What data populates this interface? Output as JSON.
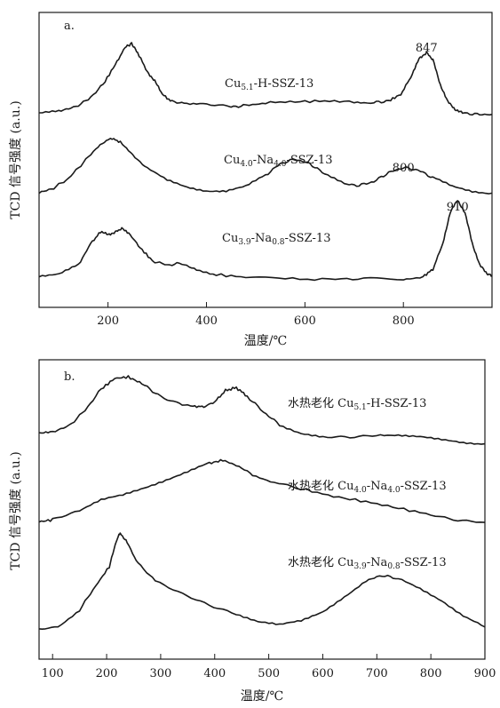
{
  "chart_data": [
    {
      "type": "line",
      "panel_label": "a.",
      "xlabel": "温度/℃",
      "ylabel": "TCD 信号强度 (a.u.)",
      "xlim": [
        60,
        980
      ],
      "x_ticks": [
        200,
        400,
        600,
        800
      ],
      "grid": false,
      "peak_labels": [
        {
          "text": "847",
          "x": 847
        },
        {
          "text": "800",
          "x": 800
        },
        {
          "text": "910",
          "x": 910
        }
      ],
      "series": [
        {
          "name": "Cu5.1-H-SSZ-13",
          "name_parts": [
            [
              "Cu",
              ""
            ],
            [
              "5.1",
              "sub"
            ],
            [
              "-H-SSZ-13",
              ""
            ]
          ],
          "points": [
            [
              60,
              0.06
            ],
            [
              100,
              0.1
            ],
            [
              130,
              0.14
            ],
            [
              160,
              0.25
            ],
            [
              190,
              0.45
            ],
            [
              215,
              0.72
            ],
            [
              235,
              0.95
            ],
            [
              248,
              1.0
            ],
            [
              260,
              0.88
            ],
            [
              280,
              0.62
            ],
            [
              295,
              0.5
            ],
            [
              310,
              0.32
            ],
            [
              330,
              0.22
            ],
            [
              360,
              0.2
            ],
            [
              400,
              0.19
            ],
            [
              450,
              0.15
            ],
            [
              480,
              0.17
            ],
            [
              520,
              0.21
            ],
            [
              580,
              0.22
            ],
            [
              640,
              0.23
            ],
            [
              700,
              0.22
            ],
            [
              740,
              0.21
            ],
            [
              770,
              0.23
            ],
            [
              795,
              0.32
            ],
            [
              815,
              0.55
            ],
            [
              832,
              0.8
            ],
            [
              847,
              0.88
            ],
            [
              860,
              0.78
            ],
            [
              875,
              0.45
            ],
            [
              890,
              0.22
            ],
            [
              905,
              0.12
            ],
            [
              920,
              0.07
            ],
            [
              950,
              0.05
            ],
            [
              980,
              0.05
            ]
          ]
        },
        {
          "name": "Cu4.0-Na4.0-SSZ-13",
          "name_parts": [
            [
              "Cu",
              ""
            ],
            [
              "4.0",
              "sub"
            ],
            [
              "-Na",
              ""
            ],
            [
              "4.0",
              "sub"
            ],
            [
              "-SSZ-13",
              ""
            ]
          ],
          "points": [
            [
              60,
              0.12
            ],
            [
              90,
              0.2
            ],
            [
              120,
              0.35
            ],
            [
              150,
              0.6
            ],
            [
              180,
              0.85
            ],
            [
              205,
              0.98
            ],
            [
              225,
              0.92
            ],
            [
              250,
              0.72
            ],
            [
              280,
              0.5
            ],
            [
              320,
              0.32
            ],
            [
              360,
              0.22
            ],
            [
              400,
              0.16
            ],
            [
              440,
              0.15
            ],
            [
              480,
              0.22
            ],
            [
              520,
              0.4
            ],
            [
              550,
              0.58
            ],
            [
              580,
              0.65
            ],
            [
              610,
              0.58
            ],
            [
              640,
              0.42
            ],
            [
              680,
              0.26
            ],
            [
              710,
              0.24
            ],
            [
              740,
              0.3
            ],
            [
              770,
              0.44
            ],
            [
              800,
              0.52
            ],
            [
              830,
              0.48
            ],
            [
              860,
              0.36
            ],
            [
              900,
              0.22
            ],
            [
              940,
              0.15
            ],
            [
              980,
              0.12
            ]
          ]
        },
        {
          "name": "Cu3.9-Na0.8-SSZ-13",
          "name_parts": [
            [
              "Cu",
              ""
            ],
            [
              "3.9",
              "sub"
            ],
            [
              "-Na",
              ""
            ],
            [
              "0.8",
              "sub"
            ],
            [
              "-SSZ-13",
              ""
            ]
          ],
          "points": [
            [
              60,
              0.08
            ],
            [
              100,
              0.1
            ],
            [
              140,
              0.2
            ],
            [
              165,
              0.45
            ],
            [
              185,
              0.58
            ],
            [
              200,
              0.55
            ],
            [
              215,
              0.58
            ],
            [
              228,
              0.62
            ],
            [
              245,
              0.55
            ],
            [
              265,
              0.4
            ],
            [
              290,
              0.25
            ],
            [
              320,
              0.2
            ],
            [
              350,
              0.22
            ],
            [
              380,
              0.14
            ],
            [
              420,
              0.09
            ],
            [
              480,
              0.06
            ],
            [
              560,
              0.04
            ],
            [
              650,
              0.04
            ],
            [
              720,
              0.04
            ],
            [
              800,
              0.04
            ],
            [
              840,
              0.07
            ],
            [
              860,
              0.15
            ],
            [
              880,
              0.45
            ],
            [
              895,
              0.8
            ],
            [
              910,
              0.95
            ],
            [
              925,
              0.8
            ],
            [
              940,
              0.45
            ],
            [
              955,
              0.2
            ],
            [
              970,
              0.1
            ],
            [
              980,
              0.08
            ]
          ]
        }
      ]
    },
    {
      "type": "line",
      "panel_label": "b.",
      "xlabel": "温度/℃",
      "ylabel": "TCD 信号强度 (a.u.)",
      "xlim": [
        75,
        900
      ],
      "x_ticks": [
        100,
        200,
        300,
        400,
        500,
        600,
        700,
        800,
        900
      ],
      "grid": false,
      "series": [
        {
          "name": "水热老化 Cu5.1-H-SSZ-13",
          "name_parts": [
            [
              "水热老化 Cu",
              ""
            ],
            [
              "5.1",
              "sub"
            ],
            [
              "-H-SSZ-13",
              ""
            ]
          ],
          "points": [
            [
              75,
              0.18
            ],
            [
              100,
              0.2
            ],
            [
              130,
              0.28
            ],
            [
              160,
              0.5
            ],
            [
              190,
              0.8
            ],
            [
              215,
              0.95
            ],
            [
              240,
              0.97
            ],
            [
              265,
              0.88
            ],
            [
              295,
              0.72
            ],
            [
              330,
              0.6
            ],
            [
              360,
              0.56
            ],
            [
              380,
              0.55
            ],
            [
              400,
              0.62
            ],
            [
              420,
              0.78
            ],
            [
              440,
              0.82
            ],
            [
              460,
              0.7
            ],
            [
              490,
              0.48
            ],
            [
              520,
              0.3
            ],
            [
              560,
              0.18
            ],
            [
              600,
              0.12
            ],
            [
              650,
              0.12
            ],
            [
              700,
              0.16
            ],
            [
              740,
              0.16
            ],
            [
              780,
              0.13
            ],
            [
              820,
              0.08
            ],
            [
              860,
              0.04
            ],
            [
              900,
              0.03
            ]
          ]
        },
        {
          "name": "水热老化 Cu4.0-Na4.0-SSZ-13",
          "name_parts": [
            [
              "水热老化 Cu",
              ""
            ],
            [
              "4.0",
              "sub"
            ],
            [
              "-Na",
              ""
            ],
            [
              "4.0",
              "sub"
            ],
            [
              "-SSZ-13",
              ""
            ]
          ],
          "points": [
            [
              75,
              0.05
            ],
            [
              100,
              0.08
            ],
            [
              150,
              0.22
            ],
            [
              190,
              0.38
            ],
            [
              230,
              0.46
            ],
            [
              270,
              0.58
            ],
            [
              310,
              0.7
            ],
            [
              350,
              0.82
            ],
            [
              390,
              0.95
            ],
            [
              415,
              1.0
            ],
            [
              440,
              0.92
            ],
            [
              470,
              0.78
            ],
            [
              510,
              0.66
            ],
            [
              560,
              0.56
            ],
            [
              620,
              0.44
            ],
            [
              680,
              0.36
            ],
            [
              740,
              0.26
            ],
            [
              800,
              0.16
            ],
            [
              850,
              0.08
            ],
            [
              900,
              0.04
            ]
          ]
        },
        {
          "name": "水热老化 Cu3.9-Na0.8-SSZ-13",
          "name_parts": [
            [
              "水热老化 Cu",
              ""
            ],
            [
              "3.9",
              "sub"
            ],
            [
              "-Na",
              ""
            ],
            [
              "0.8",
              "sub"
            ],
            [
              "-SSZ-13",
              ""
            ]
          ],
          "points": [
            [
              75,
              0.0
            ],
            [
              110,
              0.02
            ],
            [
              150,
              0.2
            ],
            [
              180,
              0.45
            ],
            [
              205,
              0.65
            ],
            [
              218,
              0.92
            ],
            [
              225,
              1.0
            ],
            [
              238,
              0.9
            ],
            [
              258,
              0.68
            ],
            [
              290,
              0.5
            ],
            [
              340,
              0.36
            ],
            [
              390,
              0.25
            ],
            [
              440,
              0.16
            ],
            [
              480,
              0.08
            ],
            [
              520,
              0.04
            ],
            [
              560,
              0.08
            ],
            [
              600,
              0.18
            ],
            [
              640,
              0.34
            ],
            [
              680,
              0.5
            ],
            [
              710,
              0.56
            ],
            [
              740,
              0.52
            ],
            [
              780,
              0.42
            ],
            [
              820,
              0.3
            ],
            [
              860,
              0.14
            ],
            [
              900,
              0.02
            ]
          ]
        }
      ]
    }
  ]
}
